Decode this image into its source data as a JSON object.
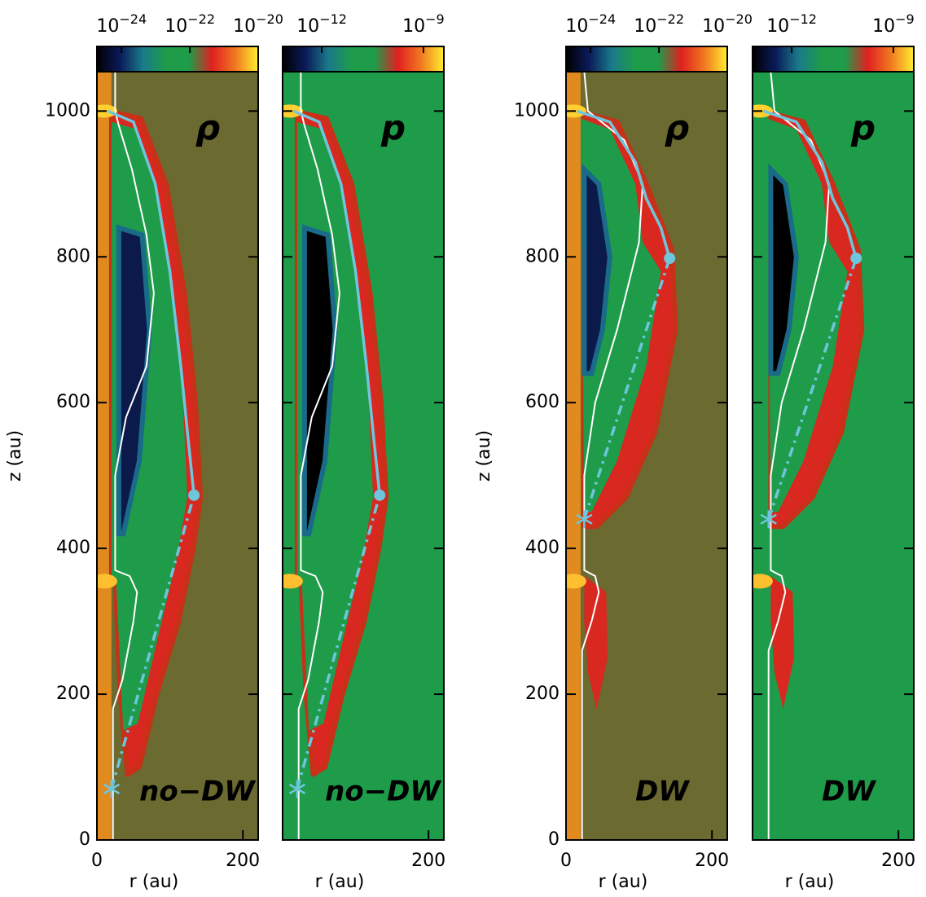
{
  "chart_data": [
    {
      "type": "map",
      "quantity_label": "ρ",
      "case_label": "no−DW",
      "xlabel": "r (au)",
      "ylabel": "z (au)",
      "xlim": [
        0,
        221
      ],
      "ylim": [
        0,
        1054
      ],
      "xticks": [
        0,
        200
      ],
      "yticks": [
        0,
        200,
        400,
        600,
        800,
        1000
      ],
      "ytick_labels": true,
      "background": "#6b6a30",
      "axis_strip": "#e08a20",
      "cavity": "#0b1a4a",
      "colorbar": {
        "log": true,
        "lim": [
          1.9e-25,
          1e-20
        ],
        "colors": [
          "#000000",
          "#0b1a5a",
          "#1a7a8a",
          "#1e9c4a",
          "#1e9c4a",
          "#e02020",
          "#f07820",
          "#ffee30"
        ],
        "ticks": [
          {
            "value": 1e-24,
            "label": "10",
            "exponent": "−24"
          },
          {
            "value": 1e-22,
            "label": "10",
            "exponent": "−22"
          },
          {
            "value": 1e-20,
            "label": "10",
            "exponent": "−20"
          }
        ]
      },
      "series": [
        {
          "color": "#6ec6dc",
          "x": [
            15,
            50,
            80,
            100,
            115,
            125,
            133
          ],
          "y": [
            1000,
            985,
            900,
            780,
            650,
            550,
            473
          ]
        }
      ],
      "points": {
        "color": "#6ec6dc",
        "x": [
          20,
          133
        ],
        "y": [
          70,
          473
        ]
      }
    },
    {
      "type": "map",
      "quantity_label": "p",
      "case_label": "no−DW",
      "xlabel": "r (au)",
      "xlim": [
        0,
        221
      ],
      "ylim": [
        0,
        1054
      ],
      "xticks": [
        200
      ],
      "yticks": [
        0,
        200,
        400,
        600,
        800,
        1000
      ],
      "ytick_labels": false,
      "background": "#1e9c4a",
      "cavity": "#000000",
      "colorbar": {
        "log": true,
        "lim": [
          7e-14,
          4e-09
        ],
        "colors": [
          "#000000",
          "#0b1a5a",
          "#1a7a8a",
          "#1e9c4a",
          "#1e9c4a",
          "#e02020",
          "#f07820",
          "#ffee30"
        ],
        "ticks": [
          {
            "value": 1e-12,
            "label": "10",
            "exponent": "−12"
          },
          {
            "value": 1e-09,
            "label": "10",
            "exponent": "−9"
          }
        ]
      },
      "series": [
        {
          "color": "#6ec6dc",
          "x": [
            15,
            50,
            80,
            100,
            115,
            125,
            133
          ],
          "y": [
            1000,
            985,
            900,
            780,
            650,
            550,
            473
          ]
        }
      ],
      "points": {
        "color": "#6ec6dc",
        "x": [
          20,
          133
        ],
        "y": [
          70,
          473
        ]
      }
    },
    {
      "type": "map",
      "quantity_label": "ρ",
      "case_label": "DW",
      "xlabel": "r (au)",
      "ylabel": "z (au)",
      "xlim": [
        0,
        221
      ],
      "ylim": [
        0,
        1054
      ],
      "xticks": [
        0,
        200
      ],
      "yticks": [
        0,
        200,
        400,
        600,
        800,
        1000
      ],
      "ytick_labels": true,
      "background": "#6b6a30",
      "axis_strip": "#e08a20",
      "cavity": "#0b1a4a",
      "colorbar": {
        "log": true,
        "lim": [
          1.9e-25,
          1e-20
        ],
        "colors": [
          "#000000",
          "#0b1a5a",
          "#1a7a8a",
          "#1e9c4a",
          "#1e9c4a",
          "#e02020",
          "#f07820",
          "#ffee30"
        ],
        "ticks": [
          {
            "value": 1e-24,
            "label": "10",
            "exponent": "−24"
          },
          {
            "value": 1e-22,
            "label": "10",
            "exponent": "−22"
          },
          {
            "value": 1e-20,
            "label": "10",
            "exponent": "−20"
          }
        ]
      },
      "series": [
        {
          "color": "#6ec6dc",
          "x": [
            15,
            60,
            95,
            110,
            130,
            142
          ],
          "y": [
            1000,
            985,
            930,
            880,
            840,
            798
          ]
        }
      ],
      "points": {
        "color": "#6ec6dc",
        "x": [
          25,
          142
        ],
        "y": [
          440,
          798
        ]
      }
    },
    {
      "type": "map",
      "quantity_label": "p",
      "case_label": "DW",
      "xlabel": "r (au)",
      "xlim": [
        0,
        221
      ],
      "ylim": [
        0,
        1054
      ],
      "xticks": [
        200
      ],
      "yticks": [
        0,
        200,
        400,
        600,
        800,
        1000
      ],
      "ytick_labels": false,
      "background": "#1e9c4a",
      "cavity": "#000000",
      "colorbar": {
        "log": true,
        "lim": [
          7e-14,
          4e-09
        ],
        "colors": [
          "#000000",
          "#0b1a5a",
          "#1a7a8a",
          "#1e9c4a",
          "#1e9c4a",
          "#e02020",
          "#f07820",
          "#ffee30"
        ],
        "ticks": [
          {
            "value": 1e-12,
            "label": "10",
            "exponent": "−12"
          },
          {
            "value": 1e-09,
            "label": "10",
            "exponent": "−9"
          }
        ]
      },
      "series": [
        {
          "color": "#6ec6dc",
          "x": [
            15,
            60,
            95,
            110,
            130,
            142
          ],
          "y": [
            1000,
            985,
            930,
            880,
            840,
            798
          ]
        }
      ],
      "points": {
        "color": "#6ec6dc",
        "x": [
          22,
          142
        ],
        "y": [
          440,
          798
        ]
      }
    }
  ]
}
